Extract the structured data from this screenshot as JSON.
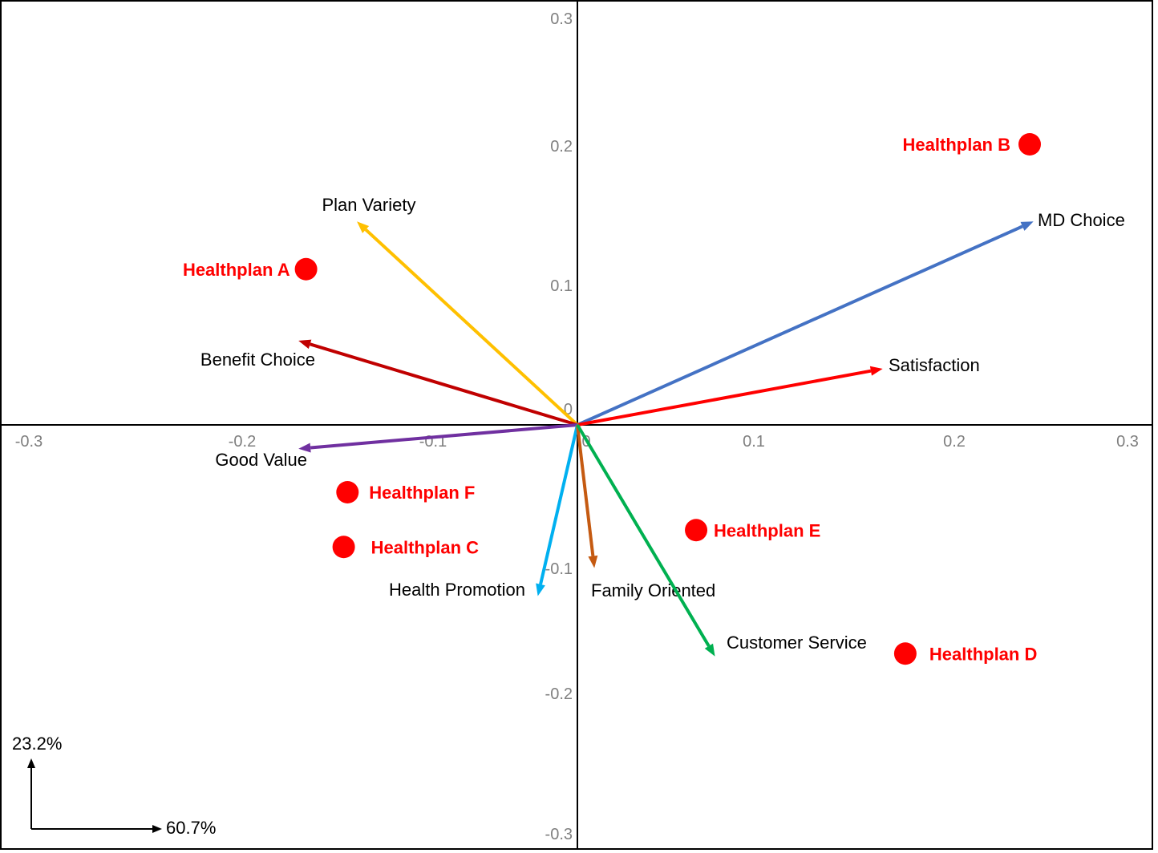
{
  "chart_data": {
    "type": "scatter",
    "subtype": "correspondence-analysis-biplot",
    "xlim": [
      -0.3,
      0.3
    ],
    "ylim": [
      -0.3,
      0.3
    ],
    "x_ticks": [
      -0.3,
      -0.2,
      -0.1,
      0,
      0.1,
      0.2,
      0.3
    ],
    "y_ticks": [
      0.3,
      0.2,
      0.1,
      0,
      -0.1,
      -0.2,
      -0.3
    ],
    "grid": false,
    "x_dimension_label": "60.7%",
    "y_dimension_label": "23.2%",
    "vectors": [
      {
        "name": "MD Choice",
        "x": 0.242,
        "y": 0.145,
        "color": "#4472c4"
      },
      {
        "name": "Satisfaction",
        "x": 0.162,
        "y": 0.04,
        "color": "#ff0000"
      },
      {
        "name": "Plan Variety",
        "x": -0.117,
        "y": 0.145,
        "color": "#ffc000"
      },
      {
        "name": "Benefit Choice",
        "x": -0.148,
        "y": 0.06,
        "color": "#c00000"
      },
      {
        "name": "Good Value",
        "x": -0.148,
        "y": -0.017,
        "color": "#7030a0"
      },
      {
        "name": "Health Promotion",
        "x": -0.021,
        "y": -0.122,
        "color": "#00b0f0"
      },
      {
        "name": "Family Oriented",
        "x": 0.009,
        "y": -0.102,
        "color": "#c55a11"
      },
      {
        "name": "Customer Service",
        "x": 0.073,
        "y": -0.165,
        "color": "#00b050"
      }
    ],
    "points": [
      {
        "name": "Healthplan A",
        "x": -0.144,
        "y": 0.111
      },
      {
        "name": "Healthplan B",
        "x": 0.24,
        "y": 0.2
      },
      {
        "name": "Healthplan C",
        "x": -0.124,
        "y": -0.087
      },
      {
        "name": "Healthplan D",
        "x": 0.174,
        "y": -0.163
      },
      {
        "name": "Healthplan E",
        "x": 0.063,
        "y": -0.075
      },
      {
        "name": "Healthplan F",
        "x": -0.122,
        "y": -0.048
      }
    ],
    "point_color": "#ff0000"
  }
}
